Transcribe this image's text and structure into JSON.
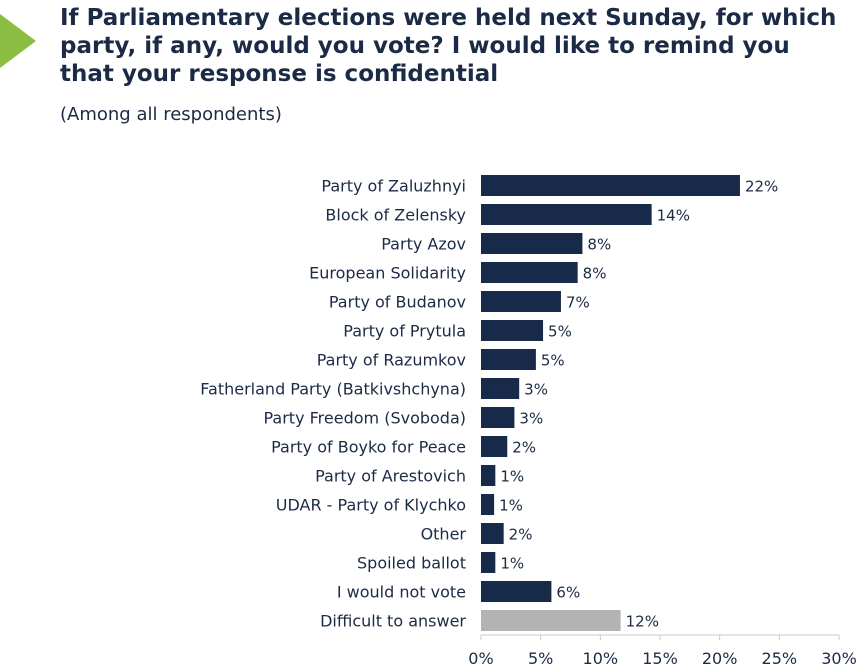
{
  "header": {
    "title": "If Parliamentary elections were held next Sunday, for which party, if any, would you vote? I would like to remind you that your response is confidential",
    "subtitle": "(Among all respondents)"
  },
  "colors": {
    "bar_primary": "#172a4a",
    "bar_secondary": "#b3b3b3",
    "accent_arrow": "#8cbd43",
    "text": "#1c2b45",
    "axis": "#c8c8c8"
  },
  "chart_data": {
    "type": "bar",
    "orientation": "horizontal",
    "title": "If Parliamentary elections were held next Sunday, for which party, if any, would you vote? I would like to remind you that your response is confidential",
    "subtitle": "(Among all respondents)",
    "xlabel": "",
    "ylabel": "",
    "xlim": [
      0,
      30
    ],
    "ticks": [
      0,
      5,
      10,
      15,
      20,
      25,
      30
    ],
    "tick_labels": [
      "0%",
      "5%",
      "10%",
      "15%",
      "20%",
      "25%",
      "30%"
    ],
    "categories": [
      "Party of Zaluzhnyi",
      "Block of Zelensky",
      "Party Azov",
      "European Solidarity",
      "Party of Budanov",
      "Party of Prytula",
      "Party of Razumkov",
      "Fatherland Party (Batkivshchyna)",
      "Party Freedom (Svoboda)",
      "Party of Boyko for Peace",
      "Party of Arestovich",
      "UDAR - Party of Klychko",
      "Other",
      "Spoiled ballot",
      "I would not vote",
      "Difficult to answer"
    ],
    "values": [
      21.7,
      14.3,
      8.5,
      8.1,
      6.7,
      5.2,
      4.6,
      3.2,
      2.8,
      2.2,
      1.2,
      1.1,
      1.9,
      1.2,
      5.9,
      11.7
    ],
    "value_labels": [
      "22%",
      "14%",
      "8%",
      "8%",
      "7%",
      "5%",
      "5%",
      "3%",
      "3%",
      "2%",
      "1%",
      "1%",
      "2%",
      "1%",
      "6%",
      "12%"
    ],
    "highlight": [
      false,
      false,
      false,
      false,
      false,
      false,
      false,
      false,
      false,
      false,
      false,
      false,
      false,
      false,
      false,
      true
    ]
  }
}
